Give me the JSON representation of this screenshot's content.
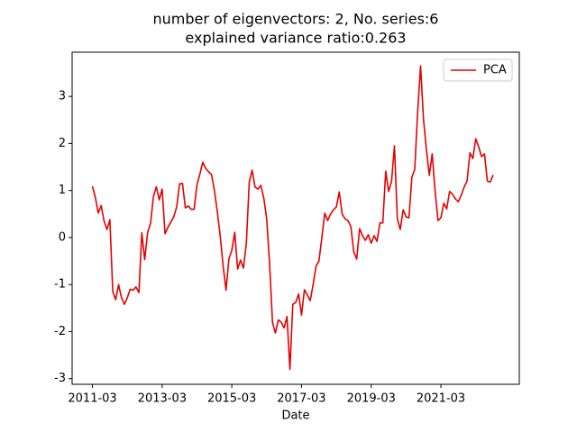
{
  "chart_data": {
    "type": "line",
    "title": [
      "number of eigenvectors: 2, No. series:6",
      "explained variance ratio:0.263"
    ],
    "x_label": "Date",
    "x": [
      "2011-03",
      "2011-04",
      "2011-05",
      "2011-06",
      "2011-07",
      "2011-08",
      "2011-09",
      "2011-10",
      "2011-11",
      "2011-12",
      "2012-01",
      "2012-02",
      "2012-03",
      "2012-04",
      "2012-05",
      "2012-06",
      "2012-07",
      "2012-08",
      "2012-09",
      "2012-10",
      "2012-11",
      "2012-12",
      "2013-01",
      "2013-02",
      "2013-03",
      "2013-04",
      "2013-05",
      "2013-06",
      "2013-07",
      "2013-08",
      "2013-09",
      "2013-10",
      "2013-11",
      "2013-12",
      "2014-01",
      "2014-02",
      "2014-03",
      "2014-04",
      "2014-05",
      "2014-06",
      "2014-07",
      "2014-08",
      "2014-09",
      "2014-10",
      "2014-11",
      "2014-12",
      "2015-01",
      "2015-02",
      "2015-03",
      "2015-04",
      "2015-05",
      "2015-06",
      "2015-07",
      "2015-08",
      "2015-09",
      "2015-10",
      "2015-11",
      "2015-12",
      "2016-01",
      "2016-02",
      "2016-03",
      "2016-04",
      "2016-05",
      "2016-06",
      "2016-07",
      "2016-08",
      "2016-09",
      "2016-10",
      "2016-11",
      "2016-12",
      "2017-01",
      "2017-02",
      "2017-03",
      "2017-04",
      "2017-05",
      "2017-06",
      "2017-07",
      "2017-08",
      "2017-09",
      "2017-10",
      "2017-11",
      "2017-12",
      "2018-01",
      "2018-02",
      "2018-03",
      "2018-04",
      "2018-05",
      "2018-06",
      "2018-07",
      "2018-08",
      "2018-09",
      "2018-10",
      "2018-11",
      "2018-12",
      "2019-01",
      "2019-02",
      "2019-03",
      "2019-04",
      "2019-05",
      "2019-06",
      "2019-07",
      "2019-08",
      "2019-09",
      "2019-10",
      "2019-11",
      "2019-12",
      "2020-01",
      "2020-02",
      "2020-03",
      "2020-04",
      "2020-05",
      "2020-06",
      "2020-07",
      "2020-08",
      "2020-09",
      "2020-10",
      "2020-11",
      "2020-12",
      "2021-01",
      "2021-02",
      "2021-03",
      "2021-04",
      "2021-05",
      "2021-06",
      "2021-07",
      "2021-08",
      "2021-09",
      "2021-10",
      "2021-11",
      "2021-12",
      "2022-01",
      "2022-02",
      "2022-03",
      "2022-04",
      "2022-05",
      "2022-06",
      "2022-07",
      "2022-08",
      "2022-09"
    ],
    "series": [
      {
        "name": "PCA",
        "color": "#e50000",
        "values": [
          1.09,
          0.85,
          0.52,
          0.68,
          0.35,
          0.17,
          0.38,
          -1.15,
          -1.32,
          -1.0,
          -1.28,
          -1.42,
          -1.28,
          -1.1,
          -1.12,
          -1.05,
          -1.17,
          0.1,
          -0.47,
          0.11,
          0.3,
          0.87,
          1.08,
          0.8,
          1.03,
          0.08,
          0.22,
          0.33,
          0.44,
          0.65,
          1.14,
          1.15,
          0.63,
          0.67,
          0.6,
          0.6,
          1.12,
          1.35,
          1.6,
          1.47,
          1.4,
          1.34,
          1.0,
          0.55,
          0.03,
          -0.6,
          -1.12,
          -0.45,
          -0.27,
          0.11,
          -0.67,
          -0.48,
          -0.65,
          -0.12,
          1.18,
          1.43,
          1.07,
          1.03,
          1.11,
          0.84,
          0.4,
          -0.54,
          -1.8,
          -2.03,
          -1.75,
          -1.8,
          -1.92,
          -1.68,
          -2.8,
          -1.42,
          -1.38,
          -1.2,
          -1.65,
          -1.11,
          -1.22,
          -1.34,
          -1.0,
          -0.61,
          -0.5,
          0.0,
          0.52,
          0.36,
          0.5,
          0.59,
          0.65,
          0.97,
          0.5,
          0.4,
          0.36,
          0.23,
          -0.31,
          -0.46,
          0.19,
          0.04,
          -0.06,
          0.06,
          -0.12,
          0.04,
          -0.08,
          0.31,
          0.31,
          1.41,
          0.98,
          1.19,
          1.95,
          0.4,
          0.17,
          0.59,
          0.44,
          0.42,
          1.28,
          1.45,
          2.68,
          3.65,
          2.52,
          1.88,
          1.32,
          1.78,
          0.99,
          0.36,
          0.42,
          0.73,
          0.61,
          0.98,
          0.92,
          0.82,
          0.76,
          0.9,
          1.07,
          1.2,
          1.8,
          1.68,
          2.1,
          1.93,
          1.72,
          1.78,
          1.2,
          1.18,
          1.33
        ]
      }
    ],
    "xlim": [
      "2010-08",
      "2023-06"
    ],
    "xticks": [
      "2011-03",
      "2013-03",
      "2015-03",
      "2017-03",
      "2019-03",
      "2021-03"
    ],
    "ylim": [
      -3.12,
      3.94
    ],
    "yticks": [
      -3,
      -2,
      -1,
      0,
      1,
      2,
      3
    ],
    "legend": "upper right"
  }
}
